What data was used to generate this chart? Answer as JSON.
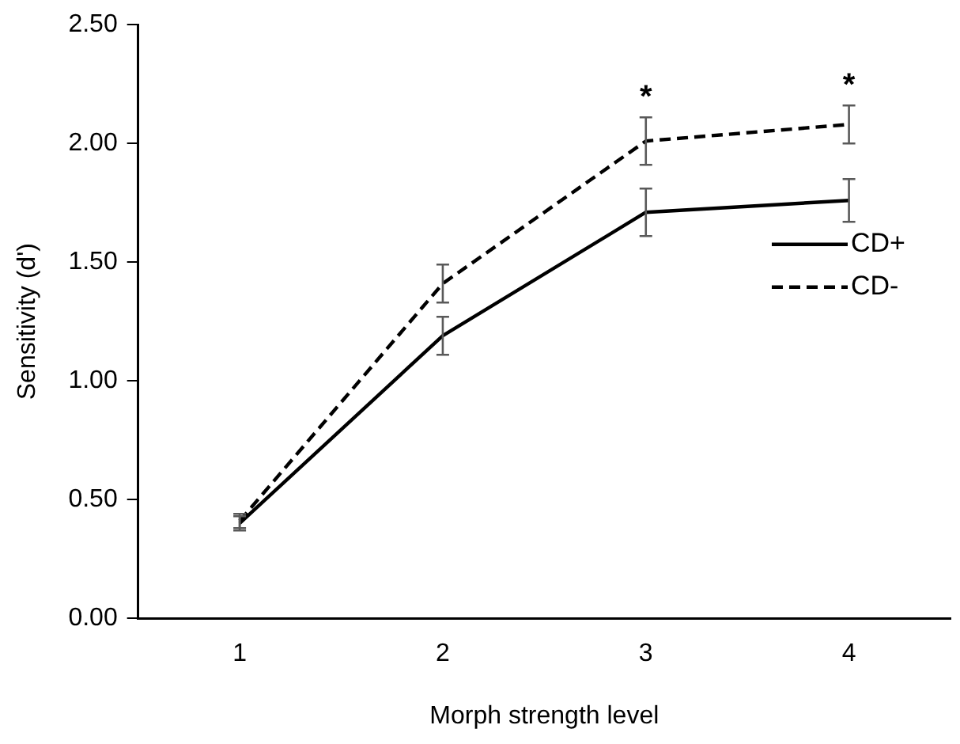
{
  "chart_data": {
    "type": "line",
    "xlabel": "Morph strength level",
    "ylabel": "Sensitivity (d')",
    "categories": [
      "1",
      "2",
      "3",
      "4"
    ],
    "series": [
      {
        "name": "CD+",
        "color": "#000000",
        "line_style": "solid",
        "values": [
          0.4,
          1.19,
          1.71,
          1.76
        ],
        "errors": [
          0.03,
          0.08,
          0.1,
          0.09
        ]
      },
      {
        "name": "CD-",
        "color": "#000000",
        "line_style": "dashed",
        "values": [
          0.41,
          1.41,
          2.01,
          2.08
        ],
        "errors": [
          0.03,
          0.08,
          0.1,
          0.08
        ]
      }
    ],
    "ylim": [
      0,
      2.5
    ],
    "yticks": [
      {
        "value": 0,
        "label": "0.00"
      },
      {
        "value": 0.5,
        "label": "0.50"
      },
      {
        "value": 1,
        "label": "1.00"
      },
      {
        "value": 1.5,
        "label": "1.50"
      },
      {
        "value": 2,
        "label": "2.00"
      },
      {
        "value": 2.5,
        "label": "2.50"
      }
    ],
    "grid": false,
    "legend": "right",
    "marker": "none",
    "annotations": [
      "*",
      "*"
    ]
  }
}
